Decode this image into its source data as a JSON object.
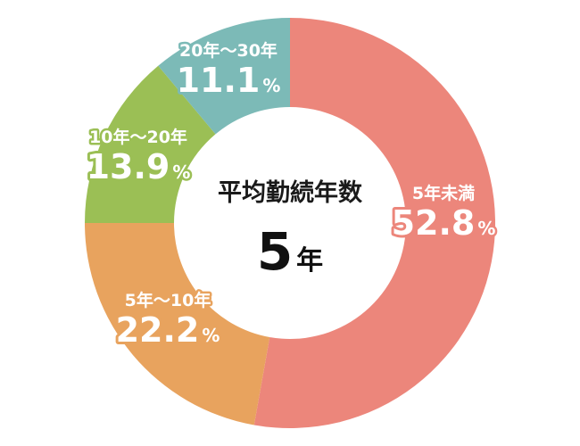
{
  "chart_data": {
    "type": "pie",
    "title": "",
    "categories": [
      "5年未満",
      "5年～10年",
      "10年～20年",
      "20年～30年"
    ],
    "values": [
      52.8,
      22.2,
      13.9,
      11.1
    ],
    "value_suffix": "%",
    "colors": [
      "#ec867b",
      "#e8a35e",
      "#9bbf55",
      "#7cbab7"
    ],
    "donut": true,
    "center": {
      "title": "平均勤続年数",
      "value": "5",
      "unit": "年"
    }
  }
}
